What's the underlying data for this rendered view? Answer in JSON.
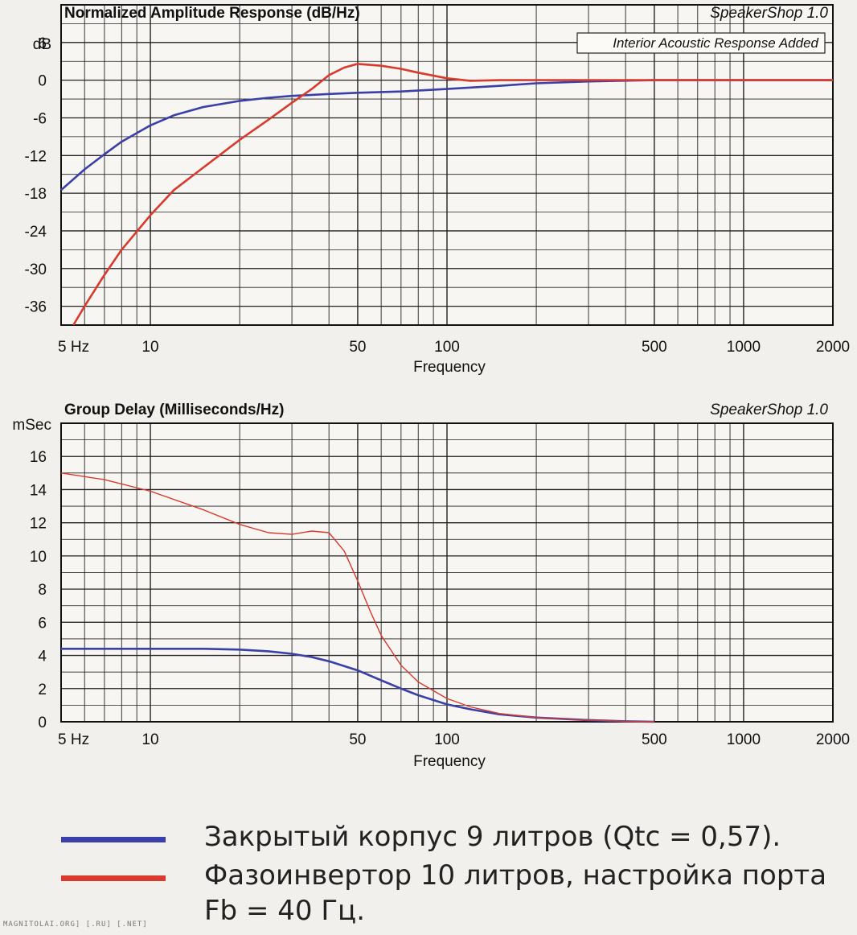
{
  "chart_data": [
    {
      "type": "line",
      "title": "Normalized Amplitude Response (dB/Hz)",
      "subtitle": "SpeakerShop 1.0",
      "annotation": "Interior Acoustic Response Added",
      "ylabel": "dB",
      "xlabel": "Frequency",
      "x_scale": "log",
      "xlim": [
        5,
        2000
      ],
      "ylim": [
        -39,
        12
      ],
      "x_tick_labels": [
        {
          "value": 5,
          "label": "5  Hz"
        },
        {
          "value": 10,
          "label": "10"
        },
        {
          "value": 50,
          "label": "50"
        },
        {
          "value": 100,
          "label": "100"
        },
        {
          "value": 500,
          "label": "500"
        },
        {
          "value": 1000,
          "label": "1000"
        },
        {
          "value": 2000,
          "label": "2000"
        }
      ],
      "y_ticks": [
        6,
        0,
        -6,
        -12,
        -18,
        -24,
        -30,
        -36
      ],
      "grid": true,
      "series": [
        {
          "color": "#3b3fa8",
          "x": [
            5,
            6,
            7,
            8,
            10,
            12,
            15,
            20,
            25,
            30,
            40,
            50,
            70,
            100,
            150,
            200,
            300,
            500,
            1000,
            2000
          ],
          "y": [
            -17.5,
            -14.2,
            -11.8,
            -9.8,
            -7.2,
            -5.6,
            -4.3,
            -3.3,
            -2.8,
            -2.5,
            -2.2,
            -2.0,
            -1.8,
            -1.4,
            -0.9,
            -0.5,
            -0.2,
            0,
            0,
            0
          ]
        },
        {
          "color": "#d83a2e",
          "x": [
            5.5,
            6,
            7,
            8,
            10,
            12,
            15,
            20,
            25,
            30,
            35,
            40,
            45,
            50,
            60,
            70,
            80,
            100,
            120,
            150,
            200,
            300,
            500,
            1000,
            2000
          ],
          "y": [
            -39,
            -36,
            -31,
            -27,
            -21.5,
            -17.5,
            -14,
            -9.5,
            -6.3,
            -3.6,
            -1.4,
            0.8,
            2,
            2.6,
            2.3,
            1.8,
            1.2,
            0.3,
            -0.1,
            0,
            0,
            0,
            0,
            0,
            0
          ]
        }
      ]
    },
    {
      "type": "line",
      "title": "Group Delay (Milliseconds/Hz)",
      "subtitle": "SpeakerShop 1.0",
      "ylabel": "mSec",
      "xlabel": "Frequency",
      "x_scale": "log",
      "xlim": [
        5,
        2000
      ],
      "ylim": [
        0,
        18
      ],
      "x_tick_labels": [
        {
          "value": 5,
          "label": "5  Hz"
        },
        {
          "value": 10,
          "label": "10"
        },
        {
          "value": 50,
          "label": "50"
        },
        {
          "value": 100,
          "label": "100"
        },
        {
          "value": 500,
          "label": "500"
        },
        {
          "value": 1000,
          "label": "1000"
        },
        {
          "value": 2000,
          "label": "2000"
        }
      ],
      "y_ticks": [
        16,
        14,
        12,
        10,
        8,
        6,
        4,
        2,
        0
      ],
      "grid": true,
      "series": [
        {
          "color": "#3b3fa8",
          "x": [
            5,
            10,
            15,
            20,
            25,
            30,
            35,
            40,
            50,
            60,
            70,
            80,
            100,
            120,
            150,
            200,
            300,
            400,
            500
          ],
          "y": [
            4.4,
            4.4,
            4.4,
            4.35,
            4.25,
            4.1,
            3.9,
            3.65,
            3.1,
            2.5,
            2.0,
            1.6,
            1.05,
            0.75,
            0.45,
            0.25,
            0.1,
            0.03,
            0
          ]
        },
        {
          "color": "#d83a2e",
          "x": [
            5,
            7,
            10,
            15,
            20,
            25,
            30,
            35,
            40,
            45,
            50,
            55,
            60,
            70,
            80,
            100,
            120,
            150,
            200,
            300,
            400,
            500
          ],
          "y": [
            15,
            14.6,
            13.9,
            12.8,
            11.9,
            11.4,
            11.3,
            11.5,
            11.4,
            10.3,
            8.5,
            6.7,
            5.2,
            3.4,
            2.4,
            1.4,
            0.9,
            0.5,
            0.25,
            0.1,
            0.03,
            0
          ]
        }
      ]
    }
  ],
  "legend": [
    {
      "label": "Закрытый корпус 9 литров (Qtc = 0,57).",
      "color": "#3b3fa8"
    },
    {
      "label": "Фазоинвертор 10 литров, настройка порта Fb = 40 Гц.",
      "color": "#d83a2e"
    }
  ],
  "footer": "MAGNITOLAI.ORG] [.RU] [.NET]"
}
